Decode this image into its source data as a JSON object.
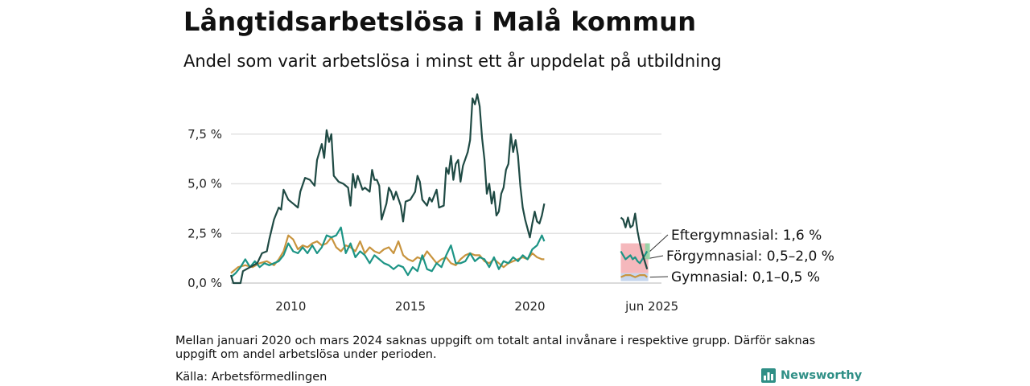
{
  "header": {
    "title": "Långtidsarbetslösa i Malå kommun",
    "subtitle": "Andel som varit arbetslösa i minst ett år uppdelat på utbildning"
  },
  "footer": {
    "note": "Mellan januari 2020 och mars 2024 saknas uppgift om totalt antal invånare i respektive grupp. Därför saknas uppgift om andel arbetslösa under perioden.",
    "source": "Källa: Arbetsförmedlingen",
    "brand": "Newsworthy",
    "brand_icon": "bar-chart-logo-icon"
  },
  "chart_data": {
    "type": "line",
    "title": "Långtidsarbetslösa i Malå kommun",
    "subtitle": "Andel som varit arbetslösa i minst ett år uppdelat på utbildning",
    "xlabel": "",
    "ylabel": "",
    "ylim": [
      0,
      10
    ],
    "yticks": [
      0,
      2.5,
      5.0,
      7.5
    ],
    "ytick_labels": [
      "0,0 %",
      "2,5 %",
      "5,0 %",
      "7,5 %"
    ],
    "xlim": [
      2008.0,
      2026.0
    ],
    "xticks": [
      2010,
      2015,
      2020
    ],
    "xtick_labels": [
      "2010",
      "2015",
      "2020"
    ],
    "extra_xtick_label": "jun 2025",
    "grid": true,
    "legend": "none",
    "series": [
      {
        "name": "Förgymnasial",
        "color": "#1f4a44",
        "points": [
          [
            2008.0,
            0.4
          ],
          [
            2008.1,
            0.0
          ],
          [
            2008.4,
            0.0
          ],
          [
            2008.5,
            0.6
          ],
          [
            2008.8,
            0.8
          ],
          [
            2009.1,
            1.0
          ],
          [
            2009.3,
            1.5
          ],
          [
            2009.5,
            1.6
          ],
          [
            2009.6,
            2.2
          ],
          [
            2009.8,
            3.2
          ],
          [
            2010.0,
            3.8
          ],
          [
            2010.1,
            3.7
          ],
          [
            2010.2,
            4.7
          ],
          [
            2010.4,
            4.2
          ],
          [
            2010.6,
            4.0
          ],
          [
            2010.8,
            3.8
          ],
          [
            2010.9,
            4.6
          ],
          [
            2011.1,
            5.3
          ],
          [
            2011.3,
            5.2
          ],
          [
            2011.5,
            4.9
          ],
          [
            2011.6,
            6.2
          ],
          [
            2011.8,
            7.0
          ],
          [
            2011.9,
            6.3
          ],
          [
            2012.0,
            7.7
          ],
          [
            2012.1,
            7.1
          ],
          [
            2012.2,
            7.5
          ],
          [
            2012.3,
            5.4
          ],
          [
            2012.5,
            5.1
          ],
          [
            2012.7,
            5.0
          ],
          [
            2012.9,
            4.8
          ],
          [
            2013.0,
            3.9
          ],
          [
            2013.1,
            5.5
          ],
          [
            2013.2,
            4.8
          ],
          [
            2013.3,
            5.4
          ],
          [
            2013.5,
            4.7
          ],
          [
            2013.6,
            4.8
          ],
          [
            2013.8,
            4.6
          ],
          [
            2013.9,
            5.7
          ],
          [
            2014.0,
            5.2
          ],
          [
            2014.1,
            5.2
          ],
          [
            2014.2,
            4.9
          ],
          [
            2014.3,
            3.2
          ],
          [
            2014.5,
            4.0
          ],
          [
            2014.6,
            4.8
          ],
          [
            2014.7,
            4.6
          ],
          [
            2014.8,
            4.2
          ],
          [
            2014.9,
            4.6
          ],
          [
            2015.1,
            3.9
          ],
          [
            2015.2,
            3.1
          ],
          [
            2015.3,
            4.1
          ],
          [
            2015.5,
            4.2
          ],
          [
            2015.7,
            4.6
          ],
          [
            2015.8,
            5.4
          ],
          [
            2015.9,
            5.1
          ],
          [
            2016.0,
            4.2
          ],
          [
            2016.2,
            3.9
          ],
          [
            2016.3,
            4.3
          ],
          [
            2016.4,
            4.1
          ],
          [
            2016.6,
            4.7
          ],
          [
            2016.7,
            3.8
          ],
          [
            2016.9,
            3.9
          ],
          [
            2017.0,
            5.8
          ],
          [
            2017.1,
            5.5
          ],
          [
            2017.2,
            6.4
          ],
          [
            2017.3,
            5.2
          ],
          [
            2017.4,
            6.0
          ],
          [
            2017.5,
            6.2
          ],
          [
            2017.6,
            5.1
          ],
          [
            2017.7,
            5.9
          ],
          [
            2017.9,
            6.6
          ],
          [
            2018.0,
            7.2
          ],
          [
            2018.1,
            9.3
          ],
          [
            2018.2,
            9.0
          ],
          [
            2018.3,
            9.5
          ],
          [
            2018.4,
            8.9
          ],
          [
            2018.5,
            7.3
          ],
          [
            2018.6,
            6.2
          ],
          [
            2018.7,
            4.5
          ],
          [
            2018.8,
            5.0
          ],
          [
            2018.9,
            4.0
          ],
          [
            2019.0,
            4.6
          ],
          [
            2019.1,
            3.4
          ],
          [
            2019.2,
            3.6
          ],
          [
            2019.3,
            4.5
          ],
          [
            2019.4,
            4.8
          ],
          [
            2019.5,
            5.7
          ],
          [
            2019.6,
            6.0
          ],
          [
            2019.7,
            7.5
          ],
          [
            2019.8,
            6.6
          ],
          [
            2019.9,
            7.2
          ],
          [
            2020.0,
            6.4
          ],
          [
            2020.1,
            4.9
          ],
          [
            2020.2,
            3.8
          ],
          [
            2020.3,
            3.2
          ],
          [
            2020.5,
            2.3
          ],
          [
            2020.6,
            3.0
          ],
          [
            2020.7,
            3.6
          ],
          [
            2020.8,
            3.1
          ],
          [
            2020.9,
            3.0
          ],
          [
            2021.0,
            3.4
          ],
          [
            2021.1,
            4.0
          ]
        ],
        "segment2": [
          [
            2024.3,
            3.3
          ],
          [
            2024.4,
            3.2
          ],
          [
            2024.5,
            2.8
          ],
          [
            2024.6,
            3.3
          ],
          [
            2024.7,
            2.8
          ],
          [
            2024.8,
            2.9
          ],
          [
            2024.9,
            3.5
          ],
          [
            2025.0,
            2.6
          ],
          [
            2025.1,
            2.0
          ],
          [
            2025.2,
            1.5
          ],
          [
            2025.3,
            1.1
          ],
          [
            2025.4,
            0.7
          ]
        ]
      },
      {
        "name": "Eftergymnasial",
        "color": "#1c9485",
        "points": [
          [
            2008.0,
            0.3
          ],
          [
            2008.2,
            0.5
          ],
          [
            2008.4,
            0.8
          ],
          [
            2008.6,
            1.2
          ],
          [
            2008.8,
            0.8
          ],
          [
            2009.0,
            1.1
          ],
          [
            2009.2,
            0.8
          ],
          [
            2009.4,
            1.0
          ],
          [
            2009.6,
            0.9
          ],
          [
            2009.8,
            1.0
          ],
          [
            2010.0,
            1.1
          ],
          [
            2010.2,
            1.4
          ],
          [
            2010.4,
            2.0
          ],
          [
            2010.6,
            1.6
          ],
          [
            2010.8,
            1.5
          ],
          [
            2011.0,
            1.8
          ],
          [
            2011.2,
            1.5
          ],
          [
            2011.4,
            1.9
          ],
          [
            2011.6,
            1.5
          ],
          [
            2011.8,
            1.8
          ],
          [
            2012.0,
            2.4
          ],
          [
            2012.2,
            2.3
          ],
          [
            2012.4,
            2.4
          ],
          [
            2012.6,
            2.8
          ],
          [
            2012.8,
            1.5
          ],
          [
            2013.0,
            2.0
          ],
          [
            2013.2,
            1.3
          ],
          [
            2013.4,
            1.6
          ],
          [
            2013.6,
            1.4
          ],
          [
            2013.8,
            1.0
          ],
          [
            2014.0,
            1.4
          ],
          [
            2014.2,
            1.2
          ],
          [
            2014.4,
            1.0
          ],
          [
            2014.6,
            0.9
          ],
          [
            2014.8,
            0.7
          ],
          [
            2015.0,
            0.9
          ],
          [
            2015.2,
            0.8
          ],
          [
            2015.4,
            0.4
          ],
          [
            2015.6,
            0.8
          ],
          [
            2015.8,
            0.6
          ],
          [
            2016.0,
            1.4
          ],
          [
            2016.2,
            0.7
          ],
          [
            2016.4,
            0.6
          ],
          [
            2016.6,
            1.0
          ],
          [
            2016.8,
            0.8
          ],
          [
            2017.0,
            1.4
          ],
          [
            2017.2,
            1.9
          ],
          [
            2017.4,
            1.0
          ],
          [
            2017.6,
            1.0
          ],
          [
            2017.8,
            1.1
          ],
          [
            2018.0,
            1.5
          ],
          [
            2018.2,
            1.1
          ],
          [
            2018.4,
            1.3
          ],
          [
            2018.6,
            1.2
          ],
          [
            2018.8,
            0.8
          ],
          [
            2019.0,
            1.3
          ],
          [
            2019.2,
            0.7
          ],
          [
            2019.4,
            1.1
          ],
          [
            2019.6,
            1.0
          ],
          [
            2019.8,
            1.3
          ],
          [
            2020.0,
            1.1
          ],
          [
            2020.2,
            1.4
          ],
          [
            2020.4,
            1.2
          ],
          [
            2020.6,
            1.7
          ],
          [
            2020.8,
            1.9
          ],
          [
            2021.0,
            2.4
          ],
          [
            2021.1,
            2.1
          ]
        ],
        "segment2": [
          [
            2024.3,
            1.6
          ],
          [
            2024.4,
            1.4
          ],
          [
            2024.5,
            1.2
          ],
          [
            2024.6,
            1.3
          ],
          [
            2024.7,
            1.4
          ],
          [
            2024.8,
            1.2
          ],
          [
            2024.9,
            1.3
          ],
          [
            2025.0,
            1.1
          ],
          [
            2025.1,
            1.0
          ],
          [
            2025.2,
            1.2
          ],
          [
            2025.3,
            1.4
          ],
          [
            2025.4,
            1.6
          ]
        ]
      },
      {
        "name": "Gymnasial",
        "color": "#c8943e",
        "points": [
          [
            2008.0,
            0.5
          ],
          [
            2008.3,
            0.8
          ],
          [
            2008.6,
            0.9
          ],
          [
            2008.9,
            0.8
          ],
          [
            2009.2,
            1.0
          ],
          [
            2009.5,
            1.1
          ],
          [
            2009.8,
            0.9
          ],
          [
            2010.0,
            1.2
          ],
          [
            2010.2,
            1.6
          ],
          [
            2010.4,
            2.4
          ],
          [
            2010.6,
            2.2
          ],
          [
            2010.8,
            1.7
          ],
          [
            2011.0,
            1.9
          ],
          [
            2011.2,
            1.8
          ],
          [
            2011.4,
            2.0
          ],
          [
            2011.6,
            2.1
          ],
          [
            2011.8,
            1.9
          ],
          [
            2012.0,
            2.0
          ],
          [
            2012.2,
            2.3
          ],
          [
            2012.4,
            1.8
          ],
          [
            2012.6,
            1.6
          ],
          [
            2012.8,
            1.9
          ],
          [
            2013.0,
            1.8
          ],
          [
            2013.2,
            1.6
          ],
          [
            2013.4,
            2.1
          ],
          [
            2013.6,
            1.5
          ],
          [
            2013.8,
            1.8
          ],
          [
            2014.0,
            1.6
          ],
          [
            2014.2,
            1.5
          ],
          [
            2014.4,
            1.7
          ],
          [
            2014.6,
            1.8
          ],
          [
            2014.8,
            1.5
          ],
          [
            2015.0,
            2.1
          ],
          [
            2015.2,
            1.4
          ],
          [
            2015.4,
            1.2
          ],
          [
            2015.6,
            1.1
          ],
          [
            2015.8,
            1.3
          ],
          [
            2016.0,
            1.2
          ],
          [
            2016.2,
            1.6
          ],
          [
            2016.4,
            1.3
          ],
          [
            2016.6,
            1.0
          ],
          [
            2016.8,
            1.2
          ],
          [
            2017.0,
            1.3
          ],
          [
            2017.2,
            1.0
          ],
          [
            2017.4,
            0.9
          ],
          [
            2017.6,
            1.2
          ],
          [
            2017.8,
            1.4
          ],
          [
            2018.0,
            1.5
          ],
          [
            2018.2,
            1.4
          ],
          [
            2018.4,
            1.4
          ],
          [
            2018.6,
            1.1
          ],
          [
            2018.8,
            1.0
          ],
          [
            2019.0,
            1.2
          ],
          [
            2019.2,
            1.0
          ],
          [
            2019.4,
            0.8
          ],
          [
            2019.6,
            1.0
          ],
          [
            2019.8,
            1.1
          ],
          [
            2020.0,
            1.2
          ],
          [
            2020.2,
            1.3
          ],
          [
            2020.4,
            1.2
          ],
          [
            2020.6,
            1.5
          ],
          [
            2020.8,
            1.3
          ],
          [
            2021.0,
            1.2
          ],
          [
            2021.1,
            1.2
          ]
        ],
        "segment2": [
          [
            2024.3,
            0.3
          ],
          [
            2024.5,
            0.4
          ],
          [
            2024.7,
            0.4
          ],
          [
            2024.9,
            0.3
          ],
          [
            2025.1,
            0.4
          ],
          [
            2025.3,
            0.4
          ],
          [
            2025.4,
            0.3
          ]
        ]
      }
    ],
    "ranges": [
      {
        "name": "Förgymnasial",
        "low": 0.5,
        "high": 2.0,
        "color": "#f2a0a6"
      },
      {
        "name": "Eftergymnasial",
        "value": 1.6,
        "color": "#8fd4a3"
      },
      {
        "name": "Gymnasial",
        "low": 0.1,
        "high": 0.5,
        "color": "#b3c8e8"
      }
    ],
    "end_labels": [
      {
        "text": "Eftergymnasial: 1,6 %"
      },
      {
        "text": "Förgymnasial: 0,5–2,0 %"
      },
      {
        "text": "Gymnasial: 0,1–0,5 %"
      }
    ]
  }
}
